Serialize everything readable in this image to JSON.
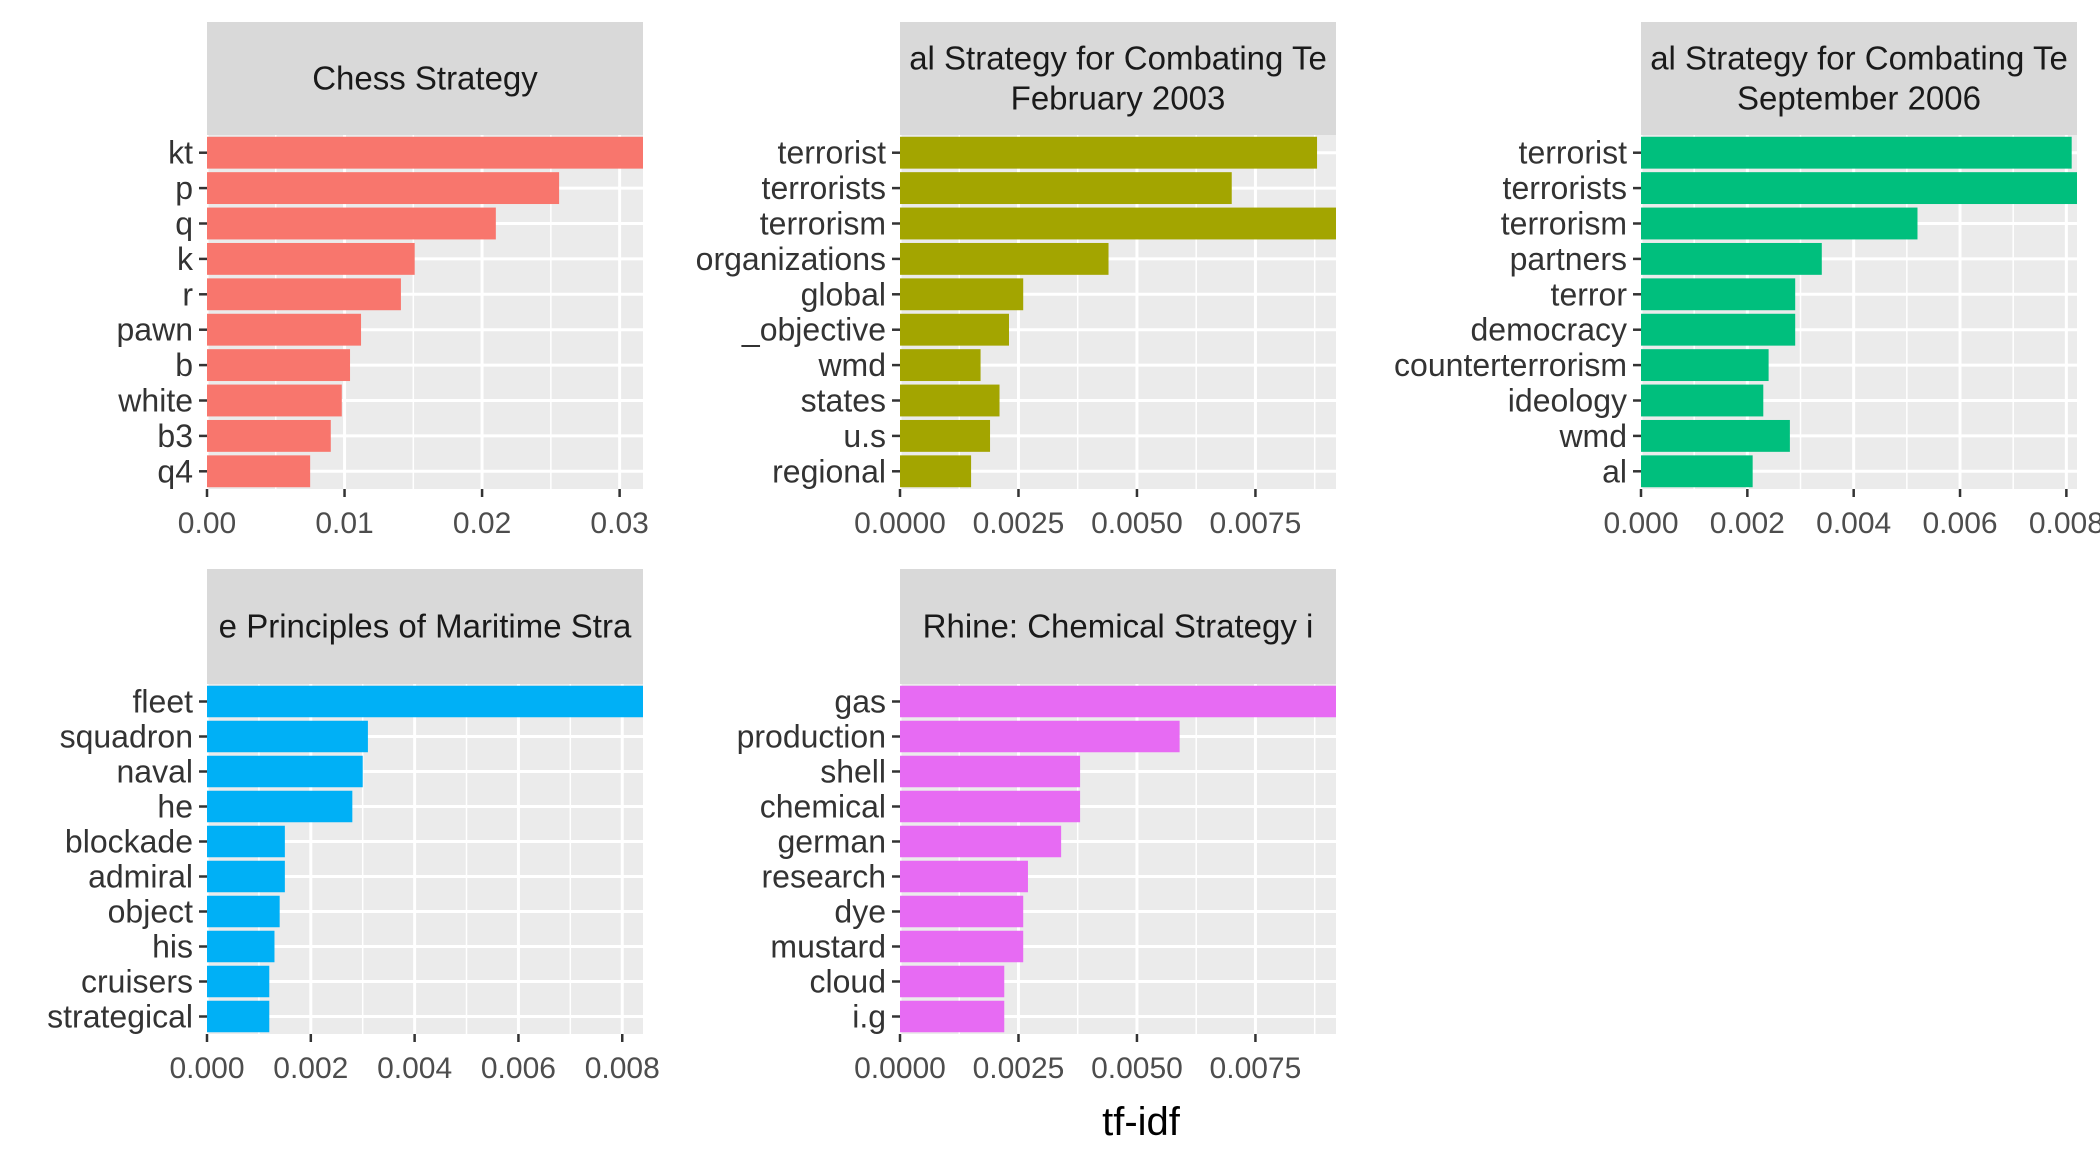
{
  "chart_data": {
    "type": "bar",
    "orientation": "horizontal",
    "xlabel": "tf-idf",
    "ylabel": "",
    "grid": true,
    "legend": "none",
    "facets": [
      {
        "title_lines": [
          "Chess Strategy"
        ],
        "color": "#F8766D",
        "categories": [
          "kt",
          "p",
          "q",
          "k",
          "r",
          "pawn",
          "b",
          "white",
          "b3",
          "q4"
        ],
        "values": [
          0.0345,
          0.0256,
          0.021,
          0.0151,
          0.0141,
          0.0112,
          0.0104,
          0.0098,
          0.009,
          0.0075
        ],
        "xlim": [
          0,
          0.0317
        ],
        "ticks": [
          0,
          0.01,
          0.02,
          0.03
        ],
        "tick_labels": [
          "0.00",
          "0.01",
          "0.02",
          "0.03"
        ]
      },
      {
        "title_lines": [
          "al Strategy for Combating Te",
          "February 2003"
        ],
        "color": "#A3A500",
        "categories": [
          "terrorist",
          "terrorists",
          "terrorism",
          "organizations",
          "global",
          "_objective",
          "wmd",
          "states",
          "u.s",
          "regional"
        ],
        "values": [
          0.0088,
          0.007,
          0.0098,
          0.0044,
          0.0026,
          0.0023,
          0.0017,
          0.0021,
          0.0019,
          0.0015
        ],
        "xlim": [
          0,
          0.0092
        ],
        "ticks": [
          0,
          0.0025,
          0.005,
          0.0075
        ],
        "tick_labels": [
          "0.0000",
          "0.0025",
          "0.0050",
          "0.0075"
        ]
      },
      {
        "title_lines": [
          "al Strategy for Combating Te",
          "September 2006"
        ],
        "color": "#00BF7D",
        "categories": [
          "terrorist",
          "terrorists",
          "terrorism",
          "partners",
          "terror",
          "democracy",
          "counterterrorism",
          "ideology",
          "wmd",
          "al"
        ],
        "values": [
          0.0081,
          0.009,
          0.0052,
          0.0034,
          0.0029,
          0.0029,
          0.0024,
          0.0023,
          0.0028,
          0.0021
        ],
        "xlim": [
          0,
          0.0082
        ],
        "ticks": [
          0,
          0.002,
          0.004,
          0.006,
          0.008
        ],
        "tick_labels": [
          "0.000",
          "0.002",
          "0.004",
          "0.006",
          "0.008"
        ]
      },
      {
        "title_lines": [
          "e Principles of Maritime Stra"
        ],
        "color": "#00B0F6",
        "categories": [
          "fleet",
          "squadron",
          "naval",
          "he",
          "blockade",
          "admiral",
          "object",
          "his",
          "cruisers",
          "strategical"
        ],
        "values": [
          0.0095,
          0.0031,
          0.003,
          0.0028,
          0.0015,
          0.0015,
          0.0014,
          0.0013,
          0.0012,
          0.0012
        ],
        "xlim": [
          0,
          0.0084
        ],
        "ticks": [
          0,
          0.002,
          0.004,
          0.006,
          0.008
        ],
        "tick_labels": [
          "0.000",
          "0.002",
          "0.004",
          "0.006",
          "0.008"
        ]
      },
      {
        "title_lines": [
          "Rhine: Chemical Strategy i"
        ],
        "color": "#E76BF3",
        "categories": [
          "gas",
          "production",
          "shell",
          "chemical",
          "german",
          "research",
          "dye",
          "mustard",
          "cloud",
          "i.g"
        ],
        "values": [
          0.01,
          0.0059,
          0.0038,
          0.0038,
          0.0034,
          0.0027,
          0.0026,
          0.0026,
          0.0022,
          0.0022
        ],
        "xlim": [
          0,
          0.0092
        ],
        "ticks": [
          0,
          0.0025,
          0.005,
          0.0075
        ],
        "tick_labels": [
          "0.0000",
          "0.0025",
          "0.0050",
          "0.0075"
        ]
      }
    ]
  }
}
